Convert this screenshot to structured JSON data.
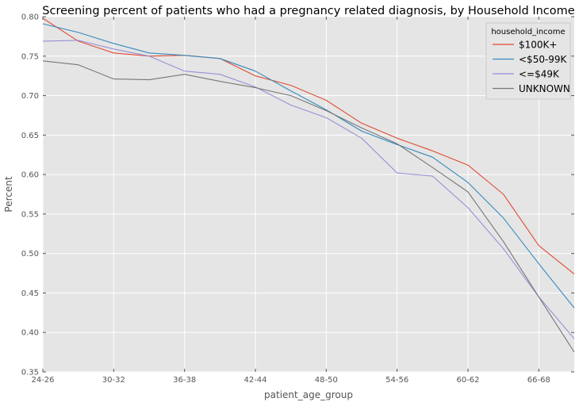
{
  "chart_data": {
    "type": "line",
    "title": "Screening percent of patients who had a pregnancy related diagnosis, by Household Income",
    "xlabel": "patient_age_group",
    "ylabel": "Percent",
    "ylim": [
      0.35,
      0.8
    ],
    "yticks": [
      "0.35",
      "0.40",
      "0.45",
      "0.50",
      "0.55",
      "0.60",
      "0.65",
      "0.70",
      "0.75",
      "0.80"
    ],
    "x": [
      0,
      1,
      2,
      3,
      4,
      5,
      6,
      7,
      8,
      9,
      10,
      11,
      12,
      13,
      14,
      15
    ],
    "xticks": [
      {
        "x": 0,
        "label": "24-26"
      },
      {
        "x": 2,
        "label": "30-32"
      },
      {
        "x": 4,
        "label": "36-38"
      },
      {
        "x": 6,
        "label": "42-44"
      },
      {
        "x": 8,
        "label": "48-50"
      },
      {
        "x": 10,
        "label": "54-56"
      },
      {
        "x": 12,
        "label": "60-62"
      },
      {
        "x": 14,
        "label": "66-68"
      }
    ],
    "grid": true,
    "legend": {
      "title": "household_income",
      "position": "top-right"
    },
    "series": [
      {
        "name": "$100K+",
        "color": "#e24a33",
        "values": [
          0.798,
          0.769,
          0.754,
          0.75,
          0.751,
          0.747,
          0.725,
          0.713,
          0.694,
          0.665,
          0.646,
          0.63,
          0.612,
          0.575,
          0.51,
          0.474
        ]
      },
      {
        "name": "<$50-99K",
        "color": "#348abd",
        "values": [
          0.791,
          0.78,
          0.766,
          0.754,
          0.751,
          0.747,
          0.731,
          0.706,
          0.682,
          0.655,
          0.638,
          0.622,
          0.59,
          0.545,
          0.487,
          0.431
        ]
      },
      {
        "name": "<=$49K",
        "color": "#988ed5",
        "values": [
          0.769,
          0.77,
          0.759,
          0.75,
          0.731,
          0.727,
          0.711,
          0.688,
          0.672,
          0.646,
          0.602,
          0.598,
          0.558,
          0.506,
          0.445,
          0.392
        ]
      },
      {
        "name": "UNKNOWN",
        "color": "#777777",
        "values": [
          0.744,
          0.739,
          0.721,
          0.72,
          0.727,
          0.718,
          0.71,
          0.7,
          0.681,
          0.659,
          0.639,
          0.609,
          0.578,
          0.515,
          0.445,
          0.375
        ]
      }
    ]
  }
}
